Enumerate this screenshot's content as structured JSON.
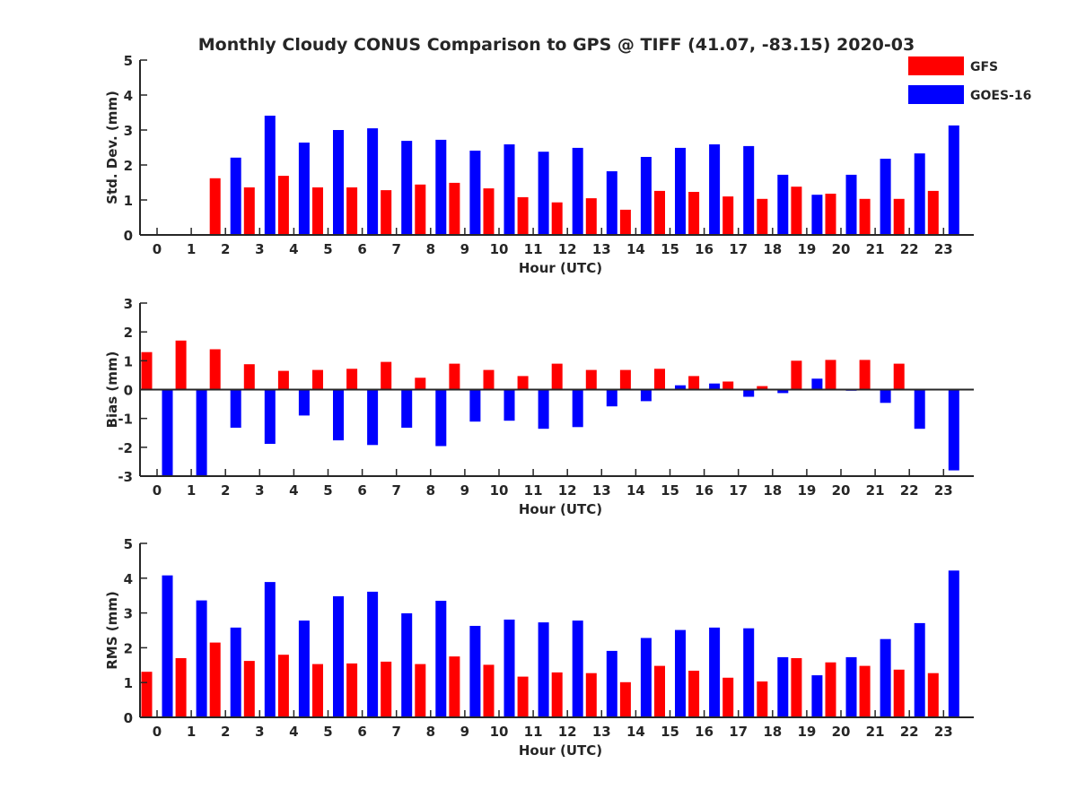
{
  "title": "Monthly Cloudy CONUS Comparison to GPS @ TIFF (41.07, -83.15) 2020-03",
  "legend": [
    {
      "name": "GFS",
      "color": "#ff0000"
    },
    {
      "name": "GOES-16",
      "color": "#0000ff"
    }
  ],
  "chart_data": [
    {
      "type": "bar",
      "ylabel": "Std. Dev. (mm)",
      "xlabel": "Hour (UTC)",
      "categories": [
        "0",
        "1",
        "2",
        "3",
        "4",
        "5",
        "6",
        "7",
        "8",
        "9",
        "10",
        "11",
        "12",
        "13",
        "14",
        "15",
        "16",
        "17",
        "18",
        "19",
        "20",
        "21",
        "22",
        "23"
      ],
      "ylim": [
        0,
        5
      ],
      "yticks": [
        0,
        1,
        2,
        3,
        4,
        5
      ],
      "series": [
        {
          "name": "GFS",
          "color": "#ff0000",
          "values": [
            0,
            0,
            1.62,
            1.36,
            1.69,
            1.36,
            1.36,
            1.28,
            1.44,
            1.49,
            1.33,
            1.08,
            0.93,
            1.05,
            0.72,
            1.26,
            1.23,
            1.1,
            1.03,
            1.38,
            1.18,
            1.03,
            1.03,
            1.26
          ]
        },
        {
          "name": "GOES-16",
          "color": "#0000ff",
          "values": [
            0,
            0,
            2.21,
            3.41,
            2.64,
            3.0,
            3.05,
            2.69,
            2.72,
            2.41,
            2.59,
            2.38,
            2.49,
            1.82,
            2.23,
            2.49,
            2.59,
            2.54,
            1.72,
            1.15,
            1.72,
            2.18,
            2.33,
            3.13
          ]
        }
      ]
    },
    {
      "type": "bar",
      "ylabel": "Bias (mm)",
      "xlabel": "Hour (UTC)",
      "categories": [
        "0",
        "1",
        "2",
        "3",
        "4",
        "5",
        "6",
        "7",
        "8",
        "9",
        "10",
        "11",
        "12",
        "13",
        "14",
        "15",
        "16",
        "17",
        "18",
        "19",
        "20",
        "21",
        "22",
        "23"
      ],
      "ylim": [
        -3,
        3
      ],
      "yticks": [
        -3,
        -2,
        -1,
        0,
        1,
        2,
        3
      ],
      "series": [
        {
          "name": "GFS",
          "color": "#ff0000",
          "values": [
            1.3,
            1.7,
            1.4,
            0.88,
            0.65,
            0.68,
            0.72,
            0.96,
            0.41,
            0.9,
            0.68,
            0.47,
            0.9,
            0.68,
            0.68,
            0.72,
            0.47,
            0.28,
            0.12,
            1.0,
            1.03,
            1.03,
            0.9,
            0
          ]
        },
        {
          "name": "GOES-16",
          "color": "#0000ff",
          "values": [
            -3.0,
            -3.0,
            -1.32,
            -1.88,
            -0.9,
            -1.76,
            -1.92,
            -1.32,
            -1.96,
            -1.11,
            -1.08,
            -1.36,
            -1.3,
            -0.58,
            -0.4,
            0.15,
            0.21,
            -0.25,
            -0.12,
            0.38,
            -0.04,
            -0.46,
            -1.36,
            -2.8
          ]
        }
      ]
    },
    {
      "type": "bar",
      "ylabel": "RMS (mm)",
      "xlabel": "Hour (UTC)",
      "categories": [
        "0",
        "1",
        "2",
        "3",
        "4",
        "5",
        "6",
        "7",
        "8",
        "9",
        "10",
        "11",
        "12",
        "13",
        "14",
        "15",
        "16",
        "17",
        "18",
        "19",
        "20",
        "21",
        "22",
        "23"
      ],
      "ylim": [
        0,
        5
      ],
      "yticks": [
        0,
        1,
        2,
        3,
        4,
        5
      ],
      "series": [
        {
          "name": "GFS",
          "color": "#ff0000",
          "values": [
            1.31,
            1.7,
            2.15,
            1.62,
            1.8,
            1.53,
            1.55,
            1.6,
            1.53,
            1.75,
            1.51,
            1.17,
            1.29,
            1.27,
            1.01,
            1.48,
            1.34,
            1.14,
            1.03,
            1.7,
            1.58,
            1.48,
            1.37,
            1.27
          ]
        },
        {
          "name": "GOES-16",
          "color": "#0000ff",
          "values": [
            4.08,
            3.36,
            2.58,
            3.89,
            2.78,
            3.48,
            3.61,
            2.99,
            3.35,
            2.63,
            2.81,
            2.73,
            2.78,
            1.91,
            2.28,
            2.51,
            2.58,
            2.56,
            1.73,
            1.21,
            1.73,
            2.25,
            2.71,
            4.22
          ]
        }
      ]
    }
  ]
}
